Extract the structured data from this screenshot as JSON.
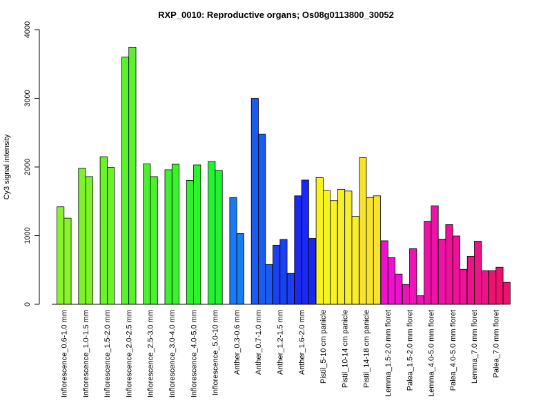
{
  "chart_data": {
    "type": "bar",
    "title": "RXP_0010: Reproductive organs; Os08g0113800_30052",
    "xlabel": "",
    "ylabel": "Cy3 signal intensity",
    "ylim": [
      0,
      4000
    ],
    "yticks": [
      0,
      1000,
      2000,
      3000,
      4000
    ],
    "grid": false,
    "groups": [
      {
        "label": "Inflorescence_0.6-1.0 mm",
        "color": "#88f22c",
        "values": [
          1420,
          1255
        ]
      },
      {
        "label": "Inflorescence_1.0-1.5 mm",
        "color": "#7df22c",
        "values": [
          1980,
          1860
        ]
      },
      {
        "label": "Inflorescence_1.5-2.0 mm",
        "color": "#6cf22c",
        "values": [
          2150,
          1995
        ]
      },
      {
        "label": "Inflorescence_2.0-2.5 mm",
        "color": "#5af22c",
        "values": [
          3600,
          3745
        ]
      },
      {
        "label": "Inflorescence_2.5-3.0 mm",
        "color": "#4af22c",
        "values": [
          2045,
          1860
        ]
      },
      {
        "label": "Inflorescence_3.0-4.0 mm",
        "color": "#3cf22c",
        "values": [
          1960,
          2040
        ]
      },
      {
        "label": "Inflorescence_4.0-5.0 mm",
        "color": "#2ef22c",
        "values": [
          1805,
          2030
        ]
      },
      {
        "label": "Inflorescence_5.0-10 mm",
        "color": "#22f234",
        "values": [
          2080,
          1950
        ]
      },
      {
        "label": "Anther_0.3-0.6 mm",
        "color": "#1a7cf2",
        "values": [
          1555,
          1030
        ]
      },
      {
        "label": "Anther_0.7-1.0 mm",
        "color": "#1a5cf2",
        "values": [
          3000,
          2480,
          580
        ]
      },
      {
        "label": "Anther_1.2-1.5 mm",
        "color": "#1a40f2",
        "values": [
          860,
          945,
          450
        ]
      },
      {
        "label": "Anther_1.6-2.0 mm",
        "color": "#1a28f2",
        "values": [
          1580,
          1810,
          960
        ]
      },
      {
        "label": "Pistil_5-10 cm panicle",
        "color": "#f8f225",
        "values": [
          1845,
          1660,
          1510
        ]
      },
      {
        "label": "Pistil_10-14 cm panicle",
        "color": "#f8ee30",
        "values": [
          1675,
          1650,
          1280
        ]
      },
      {
        "label": "Pistil_14-18 cm panicle",
        "color": "#f8e22e",
        "values": [
          2135,
          1555,
          1580
        ]
      },
      {
        "label": "Lemma_1.5-2.0 mm floret",
        "color": "#ee12cc",
        "values": [
          925,
          680,
          440
        ]
      },
      {
        "label": "Palea_1.5-2.0 mm floret",
        "color": "#ee12b8",
        "values": [
          290,
          810,
          125
        ]
      },
      {
        "label": "Lemma_4.0-5.0 mm floret",
        "color": "#ee12a8",
        "values": [
          1210,
          1435,
          950
        ]
      },
      {
        "label": "Palea_4.0-5.0 mm floret",
        "color": "#ee1298",
        "values": [
          1160,
          995,
          510
        ]
      },
      {
        "label": "Lemma_7.0 mm floret",
        "color": "#ee1288",
        "values": [
          700,
          920,
          490
        ]
      },
      {
        "label": "Palea_7.0 mm floret",
        "color": "#ee1270",
        "values": [
          490,
          540,
          320
        ]
      }
    ]
  }
}
